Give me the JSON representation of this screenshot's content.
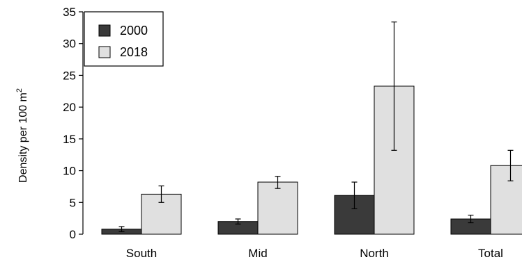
{
  "chart_data": {
    "type": "bar",
    "categories": [
      "South",
      "Mid",
      "North",
      "Total"
    ],
    "series": [
      {
        "name": "2000",
        "color": "#3a3a3a",
        "values": [
          0.8,
          2.0,
          6.1,
          2.4
        ],
        "err_low": [
          0.4,
          1.6,
          4.0,
          1.8
        ],
        "err_high": [
          1.2,
          2.4,
          8.2,
          3.0
        ]
      },
      {
        "name": "2018",
        "color": "#e0e0e0",
        "values": [
          6.3,
          8.2,
          23.3,
          10.8
        ],
        "err_low": [
          5.0,
          7.2,
          13.2,
          8.4
        ],
        "err_high": [
          7.6,
          9.1,
          33.4,
          13.2
        ]
      }
    ],
    "title": "",
    "xlabel": "",
    "ylabel": "Density per 100 m",
    "ylabel_sup": "2",
    "ylim": [
      0,
      35
    ],
    "yticks": [
      "0",
      "5",
      "10",
      "15",
      "20",
      "25",
      "30",
      "35"
    ],
    "legend_position": "top-left",
    "grid": false
  }
}
